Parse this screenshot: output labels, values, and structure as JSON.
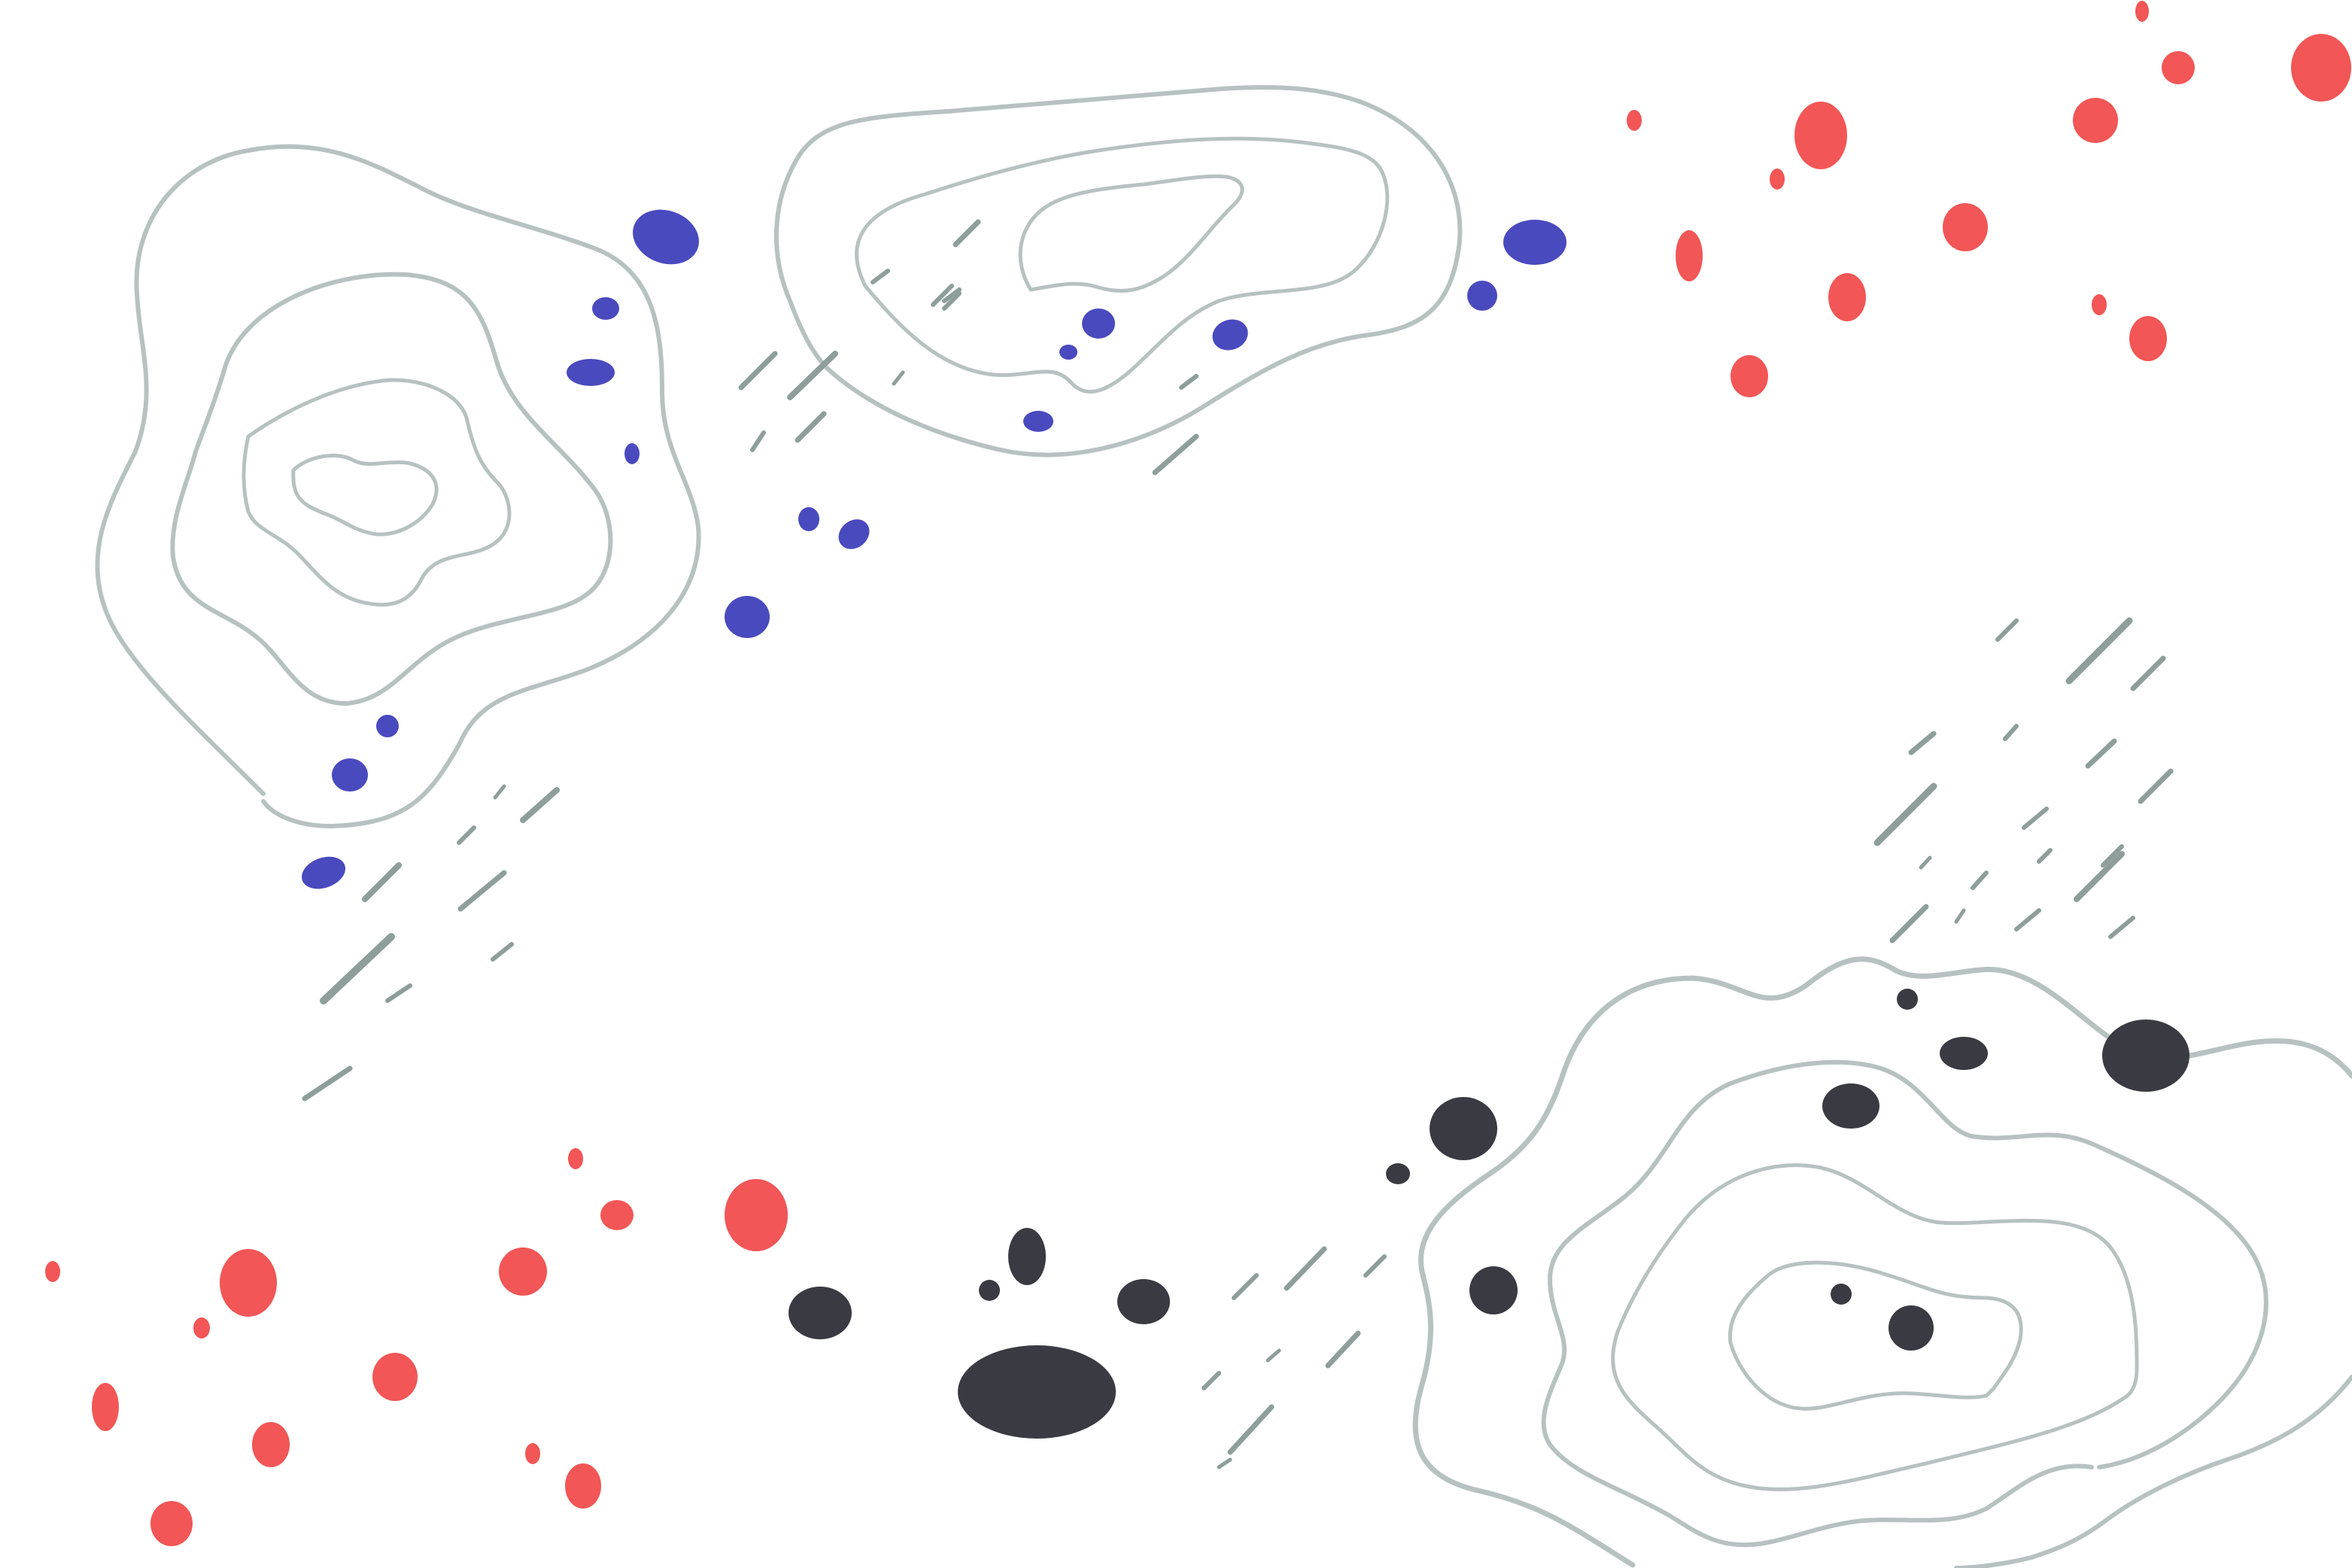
{
  "background": "#ffffff",
  "colors": {
    "contour": "#b7c2c0",
    "dash": "#8e9e9b",
    "blue": "#4a4abf",
    "red": "#f25656",
    "dark": "#3a3a42"
  },
  "groups": [
    "contour-cluster-top-left",
    "contour-cluster-top-center",
    "contour-cluster-bottom-right",
    "blue-dot-cluster",
    "red-dot-cluster-top-right",
    "red-dot-cluster-bottom-left",
    "dark-dot-cluster",
    "dash-stroke-clusters"
  ]
}
